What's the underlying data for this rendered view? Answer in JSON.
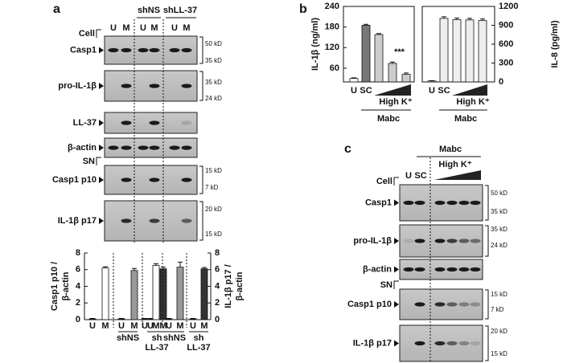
{
  "panel_a": {
    "label": "a",
    "cell_label": "Cell",
    "lanes": [
      "U",
      "M",
      "U",
      "M",
      "U",
      "M"
    ],
    "groups": [
      "shNS",
      "shLL-37"
    ],
    "sn_label": "SN",
    "blots": [
      {
        "name": "Casp1",
        "markers": [
          "50 kD",
          "35 kD"
        ]
      },
      {
        "name": "pro-IL-1β",
        "markers": [
          "35 kD",
          "24 kD"
        ]
      },
      {
        "name": "LL-37",
        "markers": []
      },
      {
        "name": "β-actin",
        "markers": []
      },
      {
        "name": "Casp1 p10",
        "markers": [
          "15 kD",
          "7 kD"
        ]
      },
      {
        "name": "IL-1β p17",
        "markers": [
          "20 kD",
          "15 kD"
        ]
      }
    ]
  },
  "panel_b": {
    "label": "b"
  },
  "panel_c": {
    "label": "c",
    "cell_label": "Cell",
    "lanes": [
      "U",
      "SC"
    ],
    "group": "Mabc",
    "gradient_label": "High K⁺",
    "sn_label": "SN",
    "blots": [
      {
        "name": "Casp1",
        "markers": [
          "50 kD",
          "35 kD"
        ]
      },
      {
        "name": "pro-IL-1β",
        "markers": [
          "35 kD",
          "24 kD"
        ]
      },
      {
        "name": "β-actin",
        "markers": []
      },
      {
        "name": "Casp1 p10",
        "markers": [
          "15 kD",
          "7 kD"
        ]
      },
      {
        "name": "IL-1β p17",
        "markers": [
          "20 kD",
          "15 kD"
        ]
      }
    ]
  },
  "chart_data": [
    {
      "type": "bar",
      "ylabel": [
        "Casp1 p10 /",
        "β-actin"
      ],
      "categories": [
        "U",
        "M",
        "U",
        "M",
        "U",
        "M"
      ],
      "values": [
        0.1,
        6.2,
        0.1,
        5.9,
        0.1,
        6.1
      ],
      "errors": [
        0.05,
        0.15,
        0.05,
        0.25,
        0.05,
        0.2
      ],
      "colors": [
        "#333333",
        "#ffffff",
        "#333333",
        "#999999",
        "#333333",
        "#333333"
      ],
      "groups": [
        [
          "shNS"
        ],
        [
          "sh",
          "LL-37"
        ]
      ],
      "ylim": [
        0,
        8
      ],
      "yticks": [
        0,
        2,
        4,
        6,
        8
      ],
      "axis_side": "left",
      "frame": false
    },
    {
      "type": "bar",
      "ylabel": [
        "IL-1β p17 /",
        "β-actin"
      ],
      "categories": [
        "U",
        "M",
        "U",
        "M",
        "U",
        "M"
      ],
      "values": [
        0.1,
        6.5,
        0.1,
        6.3,
        0.1,
        6.1
      ],
      "errors": [
        0.05,
        0.2,
        0.05,
        0.6,
        0.05,
        0.15
      ],
      "colors": [
        "#333333",
        "#ffffff",
        "#333333",
        "#999999",
        "#333333",
        "#333333"
      ],
      "groups": [
        [
          "shNS"
        ],
        [
          "sh",
          "LL-37"
        ]
      ],
      "ylim": [
        0,
        8
      ],
      "yticks": [
        0,
        2,
        4,
        6,
        8
      ],
      "axis_side": "right",
      "frame": false
    },
    {
      "type": "bar",
      "ylabel": [
        "IL-1β (ng/ml)"
      ],
      "categories": [
        "U",
        "SC",
        null,
        null,
        null
      ],
      "values": [
        30,
        185,
        158,
        74,
        42
      ],
      "errors": [
        2,
        3,
        3,
        4,
        4
      ],
      "colors": [
        "#ffffff",
        "#777777",
        "#cccccc",
        "#cccccc",
        "#cccccc"
      ],
      "gradient_label": "High K⁺",
      "group": "Mabc",
      "annotation": "***",
      "ylim": [
        20,
        240
      ],
      "yticks": [
        60,
        120,
        180,
        240
      ],
      "axis_side": "left",
      "frame": true
    },
    {
      "type": "bar",
      "ylabel": [
        "IL-8 (pg/ml)"
      ],
      "categories": [
        "U",
        "SC",
        null,
        null,
        null
      ],
      "values": [
        15,
        1010,
        990,
        985,
        975
      ],
      "errors": [
        5,
        25,
        25,
        25,
        25
      ],
      "colors": [
        "#ffffff",
        "#eeeeee",
        "#eeeeee",
        "#eeeeee",
        "#eeeeee"
      ],
      "gradient_label": "High K⁺",
      "group": "Mabc",
      "ylim": [
        0,
        1200
      ],
      "yticks": [
        0,
        300,
        600,
        900,
        1200
      ],
      "axis_side": "right",
      "frame": true
    }
  ]
}
